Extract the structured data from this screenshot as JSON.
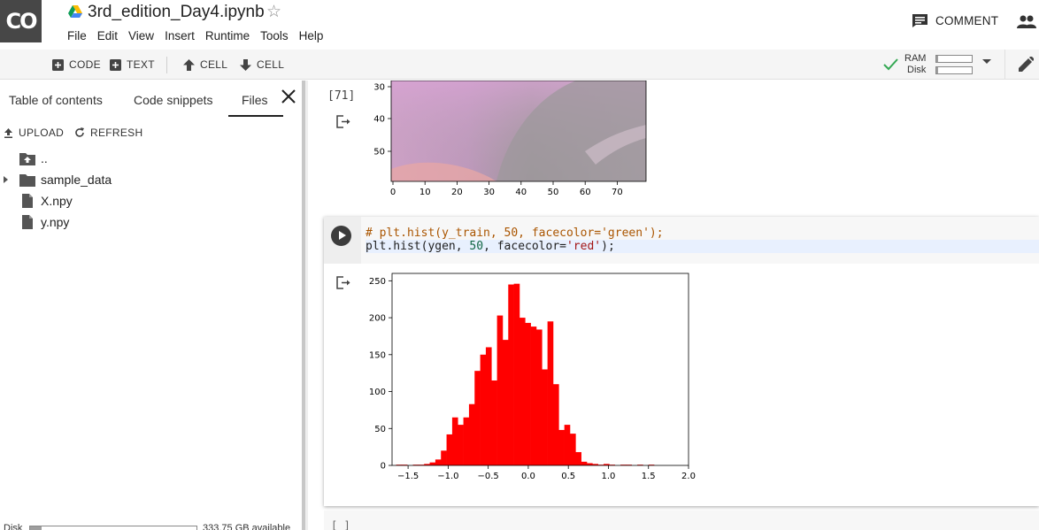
{
  "header": {
    "logo_text": "CO",
    "notebook_title": "3rd_edition_Day4.ipynb",
    "menu": [
      "File",
      "Edit",
      "View",
      "Insert",
      "Runtime",
      "Tools",
      "Help"
    ],
    "comment_label": "COMMENT"
  },
  "toolbar": {
    "add_code_label": "CODE",
    "add_text_label": "TEXT",
    "cell_up_label": "CELL",
    "cell_down_label": "CELL",
    "ram_label": "RAM",
    "disk_label": "Disk",
    "connected_color": "#34a853"
  },
  "sidebar": {
    "tabs": [
      "Table of contents",
      "Code snippets",
      "Files"
    ],
    "active_tab": "Files",
    "upload_label": "UPLOAD",
    "refresh_label": "REFRESH",
    "files": [
      {
        "name": "..",
        "type": "parent-folder-icon"
      },
      {
        "name": "sample_data",
        "type": "folder-icon"
      },
      {
        "name": "X.npy",
        "type": "file-icon"
      },
      {
        "name": "y.npy",
        "type": "file-icon"
      }
    ],
    "disk_label": "Disk",
    "disk_available": "333.75 GB available"
  },
  "notebook": {
    "cell1": {
      "execution_count": "[71]",
      "image_plot": {
        "x_ticks": [
          "0",
          "10",
          "20",
          "30",
          "40",
          "50",
          "60",
          "70"
        ],
        "y_ticks": [
          "30",
          "40",
          "50"
        ]
      }
    },
    "cell2": {
      "code_line_1": "# plt.hist(y_train, 50, facecolor='green');",
      "code_line_2_parts": [
        "plt.hist(ygen, ",
        "50",
        ", facecolor=",
        "'red'",
        ");"
      ]
    },
    "next_cell_count": "[ ]"
  },
  "chart_data": {
    "type": "bar",
    "title": "",
    "xlabel": "",
    "ylabel": "",
    "bar_color": "#ff0000",
    "xlim": [
      -1.7,
      2.0
    ],
    "ylim": [
      0,
      260
    ],
    "x_ticks": [
      -1.5,
      -1.0,
      -0.5,
      0.0,
      0.5,
      1.0,
      1.5,
      2.0
    ],
    "x_tick_labels": [
      "−1.5",
      "−1.0",
      "−0.5",
      "0.0",
      "0.5",
      "1.0",
      "1.5",
      "2.0"
    ],
    "y_ticks": [
      0,
      50,
      100,
      150,
      200,
      250
    ],
    "y_tick_labels": [
      "0",
      "50",
      "100",
      "150",
      "200",
      "250"
    ],
    "bin_start": -1.65,
    "bin_width": 0.07,
    "values": [
      1,
      1,
      0,
      1,
      1,
      2,
      4,
      8,
      20,
      42,
      65,
      55,
      65,
      83,
      128,
      150,
      160,
      115,
      203,
      170,
      245,
      246,
      200,
      193,
      188,
      184,
      130,
      195,
      110,
      48,
      55,
      43,
      18,
      5,
      3,
      2,
      1,
      2,
      1,
      0,
      1,
      1,
      0,
      1,
      0,
      1,
      0,
      0
    ]
  }
}
